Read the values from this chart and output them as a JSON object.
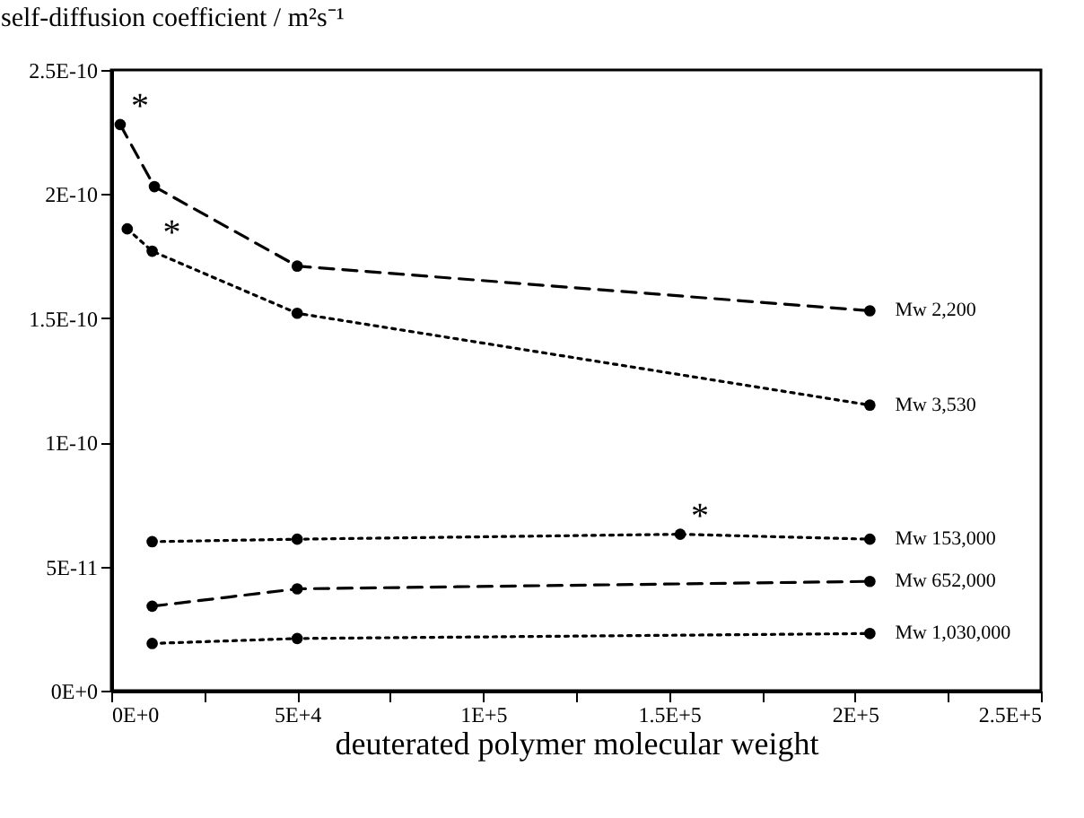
{
  "chart_data": {
    "type": "line",
    "ylabel": "self-diffusion coefficient / m²s⁻¹",
    "xlabel": "deuterated polymer molecular weight",
    "xlim": [
      0,
      250000
    ],
    "ylim": [
      0,
      2.5e-10
    ],
    "xticks": [
      {
        "value": 0,
        "label": "0E+0"
      },
      {
        "value": 25000,
        "label": null
      },
      {
        "value": 50000,
        "label": "5E+4"
      },
      {
        "value": 75000,
        "label": null
      },
      {
        "value": 100000,
        "label": "1E+5"
      },
      {
        "value": 125000,
        "label": null
      },
      {
        "value": 150000,
        "label": "1.5E+5"
      },
      {
        "value": 175000,
        "label": null
      },
      {
        "value": 200000,
        "label": "2E+5"
      },
      {
        "value": 225000,
        "label": null
      },
      {
        "value": 250000,
        "label": "2.5E+5"
      }
    ],
    "yticks": [
      {
        "value": 0,
        "label": "0E+0"
      },
      {
        "value": 5e-11,
        "label": "5E-11"
      },
      {
        "value": 1e-10,
        "label": "1E-10"
      },
      {
        "value": 1.5e-10,
        "label": "1.5E-10"
      },
      {
        "value": 2e-10,
        "label": "2E-10"
      },
      {
        "value": 2.5e-10,
        "label": "2.5E-10"
      }
    ],
    "marker": "circle",
    "grid": false,
    "legend": false,
    "series": [
      {
        "name": "Mw 2,200",
        "color": "#000000",
        "line_style": "dashed",
        "x": [
          2400,
          11600,
          50000,
          204000
        ],
        "values": [
          2.28e-10,
          2.03e-10,
          1.71e-10,
          1.53e-10
        ]
      },
      {
        "name": "Mw 3,530",
        "color": "#000000",
        "line_style": "dotted",
        "x": [
          4300,
          11000,
          50000,
          204000
        ],
        "values": [
          1.86e-10,
          1.77e-10,
          1.52e-10,
          1.15e-10
        ]
      },
      {
        "name": "Mw 153,000",
        "color": "#000000",
        "line_style": "dotted",
        "x": [
          11000,
          50000,
          153000,
          204000
        ],
        "values": [
          6e-11,
          6.1e-11,
          6.3e-11,
          6.1e-11
        ]
      },
      {
        "name": "Mw 652,000",
        "color": "#000000",
        "line_style": "dashed",
        "x": [
          11000,
          50000,
          204000
        ],
        "values": [
          3.4e-11,
          4.1e-11,
          4.4e-11
        ]
      },
      {
        "name": "Mw 1,030,000",
        "color": "#000000",
        "line_style": "dotted",
        "x": [
          11000,
          50000,
          204000
        ],
        "values": [
          1.9e-11,
          2.1e-11,
          2.3e-11
        ]
      }
    ],
    "annotations": [
      {
        "text": "*",
        "x": 2400,
        "y": 2.28e-10
      },
      {
        "text": "*",
        "x": 11000,
        "y": 1.77e-10
      },
      {
        "text": "*",
        "x": 153000,
        "y": 6.3e-11
      }
    ]
  }
}
